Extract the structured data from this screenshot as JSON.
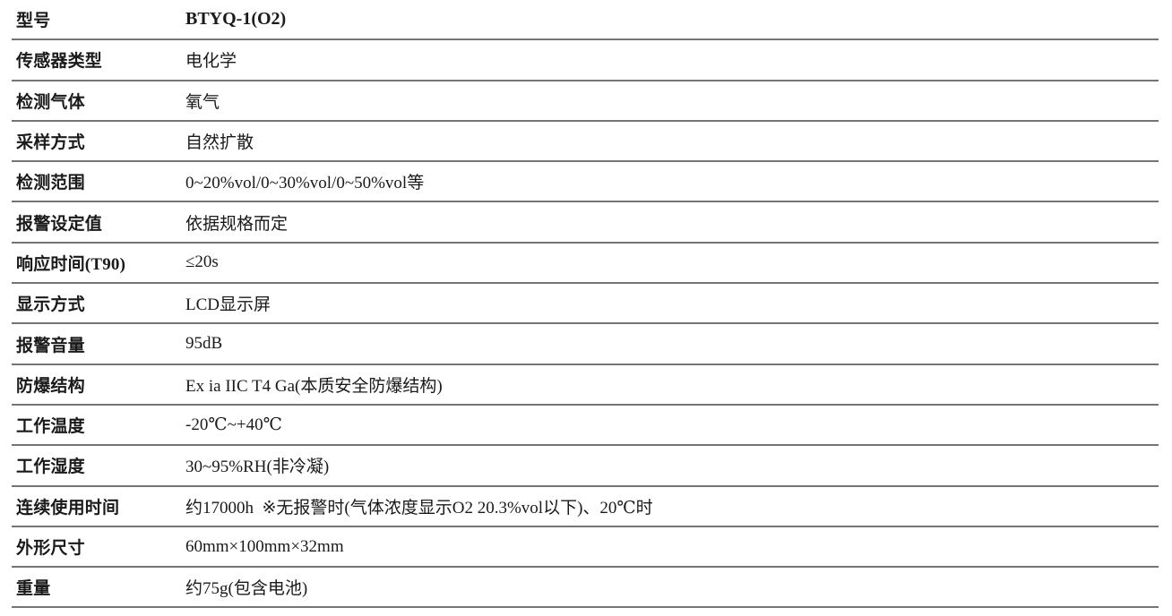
{
  "colors": {
    "background": "#ffffff",
    "text": "#1a1a1a",
    "divider": "#757575"
  },
  "table": {
    "rows": [
      {
        "label": "型号",
        "value": "BTYQ-1(O2)"
      },
      {
        "label": "传感器类型",
        "value": "电化学"
      },
      {
        "label": "检测气体",
        "value": "氧气"
      },
      {
        "label": "采样方式",
        "value": "自然扩散"
      },
      {
        "label": "检测范围",
        "value": "0~20%vol/0~30%vol/0~50%vol等"
      },
      {
        "label": "报警设定值",
        "value": "依据规格而定"
      },
      {
        "label": "响应时间(T90)",
        "value": "≤20s"
      },
      {
        "label": "显示方式",
        "value": "LCD显示屏"
      },
      {
        "label": "报警音量",
        "value": "95dB"
      },
      {
        "label": "防爆结构",
        "value": "Ex ia IIC T4 Ga(本质安全防爆结构)"
      },
      {
        "label": "工作温度",
        "value": "-20℃~+40℃"
      },
      {
        "label": "工作湿度",
        "value": "30~95%RH(非冷凝)"
      },
      {
        "label": "连续使用时间",
        "value": "约17000h  ※无报警时(气体浓度显示O2 20.3%vol以下)、20℃时"
      },
      {
        "label": "外形尺寸",
        "value": "60mm×100mm×32mm"
      },
      {
        "label": "重量",
        "value": "约75g(包含电池)"
      }
    ]
  }
}
